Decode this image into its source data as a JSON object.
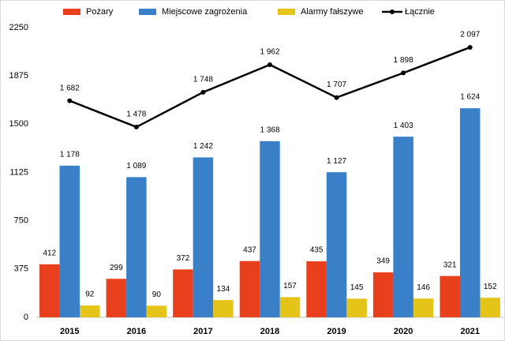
{
  "chart_data": {
    "type": "bar",
    "categories": [
      "2015",
      "2016",
      "2017",
      "2018",
      "2019",
      "2020",
      "2021"
    ],
    "series": [
      {
        "name": "Pożary",
        "color": "#e8401c",
        "values": [
          412,
          299,
          372,
          437,
          435,
          349,
          321
        ]
      },
      {
        "name": "Miejscowe zagrożenia",
        "color": "#3a80c9",
        "values": [
          1178,
          1089,
          1242,
          1368,
          1127,
          1403,
          1624
        ],
        "value_labels": [
          "1 178",
          "1 089",
          "1 242",
          "1 368",
          "1 127",
          "1 403",
          "1 624"
        ]
      },
      {
        "name": "Alarmy fałszywe",
        "color": "#e5c41a",
        "values": [
          92,
          90,
          134,
          157,
          145,
          146,
          152
        ]
      },
      {
        "name": "Łącznie",
        "type": "line",
        "color": "#000000",
        "values": [
          1682,
          1478,
          1748,
          1962,
          1707,
          1898,
          2097
        ],
        "value_labels": [
          "1 682",
          "1 478",
          "1 748",
          "1 962",
          "1 707",
          "1 898",
          "2 097"
        ]
      }
    ],
    "ylim": [
      0,
      2250
    ],
    "yticks": [
      0,
      375,
      750,
      1125,
      1500,
      1875,
      2250
    ],
    "grid": false,
    "legend": "top"
  }
}
